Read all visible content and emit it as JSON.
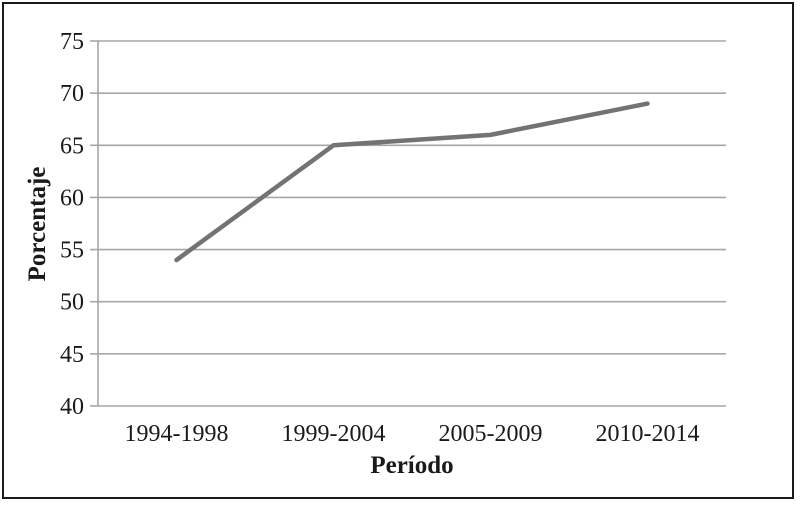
{
  "chart_data": {
    "type": "line",
    "title": "",
    "categories": [
      "1994-1998",
      "1999-2004",
      "2005-2009",
      "2010-2014"
    ],
    "series": [
      {
        "name": "Porcentaje",
        "values": [
          54,
          65,
          66,
          69
        ]
      }
    ],
    "xlabel": "Período",
    "ylabel": "Porcentaje",
    "ylim": [
      40,
      75
    ],
    "ytick_step": 5,
    "yticks": [
      40,
      45,
      50,
      55,
      60,
      65,
      70,
      75
    ],
    "grid": true,
    "legend_position": "none",
    "colors": {
      "line": "#737373",
      "gridline": "#a6a6a6",
      "axis": "#a6a6a6",
      "text": "#1a1a1a",
      "frame": "#1a1a1a",
      "background": "#ffffff"
    }
  }
}
